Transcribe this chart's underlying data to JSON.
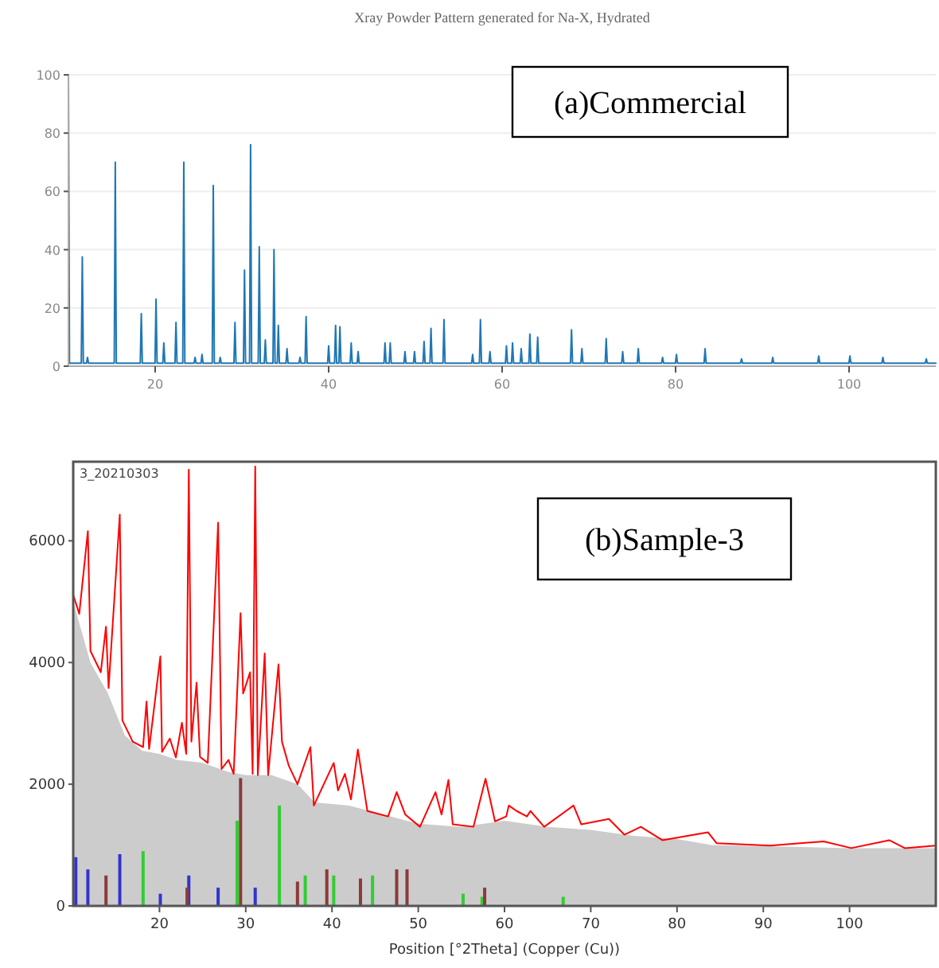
{
  "chart_data": [
    {
      "type": "line",
      "title": "Xray Powder Pattern generated for Na-X, Hydrated",
      "annotations": [
        "(a)Commercial"
      ],
      "xlim": [
        10,
        110
      ],
      "ylim": [
        0,
        100
      ],
      "xticks": [
        20,
        40,
        60,
        80,
        100
      ],
      "yticks": [
        0,
        20,
        40,
        60,
        80,
        100
      ],
      "grid": "y",
      "series": [
        {
          "color": "#1f77b4",
          "x": [
            10,
            10.12,
            11.48,
            11.6,
            11.72,
            12.08,
            12.2,
            12.32,
            15.28,
            15.4,
            15.52,
            18.28,
            18.4,
            18.52,
            19.98,
            20.1,
            20.22,
            20.88,
            21.0,
            21.12,
            22.28,
            22.4,
            22.52,
            23.18,
            23.3,
            23.42,
            24.48,
            24.6,
            24.72,
            25.28,
            25.4,
            25.52,
            26.58,
            26.7,
            26.82,
            27.38,
            27.5,
            27.62,
            29.08,
            29.2,
            29.32,
            30.18,
            30.3,
            30.42,
            30.88,
            31.0,
            31.12,
            31.88,
            32.0,
            32.12,
            32.58,
            32.7,
            32.82,
            33.58,
            33.7,
            33.82,
            34.08,
            34.2,
            34.32,
            35.08,
            35.2,
            35.32,
            36.58,
            36.7,
            36.82,
            37.28,
            37.4,
            37.52,
            39.88,
            40.0,
            40.12,
            40.68,
            40.8,
            40.92,
            41.18,
            41.3,
            41.42,
            42.48,
            42.6,
            42.72,
            43.28,
            43.4,
            43.52,
            46.38,
            46.5,
            46.62,
            46.98,
            47.1,
            47.22,
            48.68,
            48.8,
            48.92,
            49.78,
            49.9,
            50.02,
            50.88,
            51.0,
            51.12,
            51.68,
            51.8,
            51.92,
            53.18,
            53.3,
            53.42,
            56.48,
            56.6,
            56.72,
            57.38,
            57.5,
            57.62,
            58.48,
            58.6,
            58.72,
            60.38,
            60.5,
            60.62,
            61.08,
            61.2,
            61.32,
            62.08,
            62.2,
            62.32,
            63.08,
            63.2,
            63.32,
            63.98,
            64.1,
            64.22,
            67.88,
            68.0,
            68.12,
            69.08,
            69.2,
            69.32,
            71.88,
            72.0,
            72.12,
            73.78,
            73.9,
            74.02,
            75.58,
            75.7,
            75.82,
            78.38,
            78.5,
            78.62,
            79.98,
            80.1,
            80.22,
            83.28,
            83.4,
            83.52,
            87.48,
            87.6,
            87.72,
            91.08,
            91.2,
            91.32,
            96.38,
            96.5,
            96.62,
            99.98,
            100.1,
            100.22,
            103.78,
            103.9,
            104.02,
            108.78,
            108.9,
            109.02,
            110
          ],
          "values": [
            100,
            1,
            1,
            37.5,
            1,
            1,
            3,
            1,
            1,
            70,
            1,
            1,
            18,
            1,
            1,
            23,
            1,
            1,
            8,
            1,
            1,
            15,
            1,
            1,
            70,
            1,
            1,
            3,
            1,
            1,
            4,
            1,
            1,
            62,
            1,
            1,
            3,
            1,
            1,
            15,
            1,
            1,
            33,
            1,
            1,
            76,
            1,
            1,
            41,
            1,
            1,
            9,
            1,
            1,
            40,
            1,
            1,
            14,
            1,
            1,
            6,
            1,
            1,
            3,
            1,
            1,
            17,
            1,
            1,
            7,
            1,
            1,
            14,
            1,
            1,
            13.5,
            1,
            1,
            8,
            1,
            1,
            5,
            1,
            1,
            8,
            1,
            1,
            8,
            1,
            1,
            5,
            1,
            1,
            5,
            1,
            1,
            8.5,
            1,
            1,
            13,
            1,
            1,
            16,
            1,
            1,
            4,
            1,
            1,
            16,
            1,
            1,
            5,
            1,
            1,
            7,
            1,
            1,
            8,
            1,
            1,
            6,
            1,
            1,
            11,
            1,
            1,
            10,
            1,
            1,
            12.5,
            1,
            1,
            6,
            1,
            1,
            9.5,
            1,
            1,
            5,
            1,
            1,
            6,
            1,
            1,
            3,
            1,
            1,
            4,
            1,
            1,
            6,
            1,
            1,
            2.5,
            1,
            1,
            3,
            1,
            1,
            3.5,
            1,
            1,
            3.5,
            1,
            1,
            3,
            1,
            1,
            2.5,
            1,
            1
          ]
        }
      ]
    },
    {
      "type": "line",
      "xlabel": "Position [°2Theta] (Copper (Cu))",
      "annotations": [
        "3_20210303",
        "(b)Sample-3"
      ],
      "xlim": [
        10,
        110
      ],
      "ylim": [
        0,
        7300
      ],
      "xticks": [
        20,
        30,
        40,
        50,
        60,
        70,
        80,
        90,
        100
      ],
      "yticks": [
        0,
        2000,
        4000,
        6000
      ],
      "series": [
        {
          "type": "area",
          "color": "#cccccc",
          "x": [
            10,
            12,
            14,
            16,
            18,
            20,
            22,
            25,
            28,
            30,
            33,
            36,
            38,
            42,
            46,
            50,
            55,
            60,
            65,
            70,
            75,
            80,
            84,
            90,
            100,
            110
          ],
          "values": [
            5000,
            4000,
            3500,
            2800,
            2550,
            2500,
            2400,
            2350,
            2200,
            2150,
            2150,
            2000,
            1700,
            1650,
            1500,
            1350,
            1300,
            1400,
            1300,
            1250,
            1150,
            1100,
            1000,
            980,
            950,
            950
          ]
        },
        {
          "color": "#ff0000",
          "x": [
            10,
            10.7,
            11.7,
            12,
            13.2,
            13.8,
            14.1,
            15.4,
            15.7,
            16.9,
            18.1,
            18.5,
            18.8,
            20.1,
            20.3,
            21.2,
            21.9,
            22.6,
            23.1,
            23.4,
            23.7,
            24.3,
            24.7,
            25.6,
            26.8,
            27.2,
            28,
            28.6,
            29.4,
            29.7,
            30.5,
            30.8,
            31.1,
            31.4,
            32.2,
            32.6,
            33.8,
            34.2,
            35,
            36,
            37.5,
            37.9,
            40.2,
            40.7,
            41.5,
            42.2,
            43,
            44.1,
            46.5,
            47.5,
            48.5,
            50.2,
            52,
            52.7,
            53.5,
            54,
            56.4,
            57.8,
            58.9,
            60.2,
            60.5,
            61.4,
            62.6,
            63,
            64.6,
            68,
            68.9,
            72.1,
            73.9,
            75.8,
            78.3,
            83.6,
            84.6,
            90.8,
            97,
            100.2,
            104.6,
            106.4,
            110
          ],
          "values": [
            5110,
            4800,
            6160,
            4190,
            3840,
            4590,
            3580,
            6430,
            3050,
            2700,
            2610,
            3360,
            2580,
            4100,
            2530,
            2750,
            2440,
            3010,
            2500,
            7170,
            2700,
            3670,
            2450,
            2350,
            6300,
            2250,
            2400,
            2170,
            4810,
            3490,
            3840,
            2170,
            7220,
            2150,
            4150,
            2150,
            3970,
            2700,
            2300,
            2000,
            2610,
            1650,
            2350,
            1900,
            2170,
            1750,
            2570,
            1560,
            1470,
            1870,
            1500,
            1300,
            1870,
            1500,
            2070,
            1340,
            1300,
            2090,
            1390,
            1470,
            1650,
            1560,
            1470,
            1560,
            1300,
            1650,
            1340,
            1430,
            1170,
            1300,
            1080,
            1210,
            1030,
            990,
            1060,
            950,
            1080,
            950,
            990
          ]
        },
        {
          "type": "bar",
          "color": "#3333cc",
          "x": [
            10.3,
            11.7,
            15.4,
            20.1,
            23.4,
            26.8,
            31.1
          ],
          "values": [
            800,
            600,
            850,
            200,
            500,
            300,
            300
          ]
        },
        {
          "type": "bar",
          "color": "#33cc33",
          "x": [
            18.1,
            29.0,
            33.9,
            36.9,
            40.2,
            44.7,
            55.2,
            57.4,
            66.8
          ],
          "values": [
            900,
            1400,
            1650,
            500,
            500,
            500,
            200,
            150,
            150
          ]
        },
        {
          "type": "bar",
          "color": "#8b3a3a",
          "x": [
            13.8,
            23.2,
            29.4,
            36,
            39.4,
            43.3,
            47.5,
            48.7,
            57.7
          ],
          "values": [
            500,
            300,
            2100,
            400,
            600,
            450,
            600,
            600,
            300
          ]
        }
      ]
    }
  ]
}
